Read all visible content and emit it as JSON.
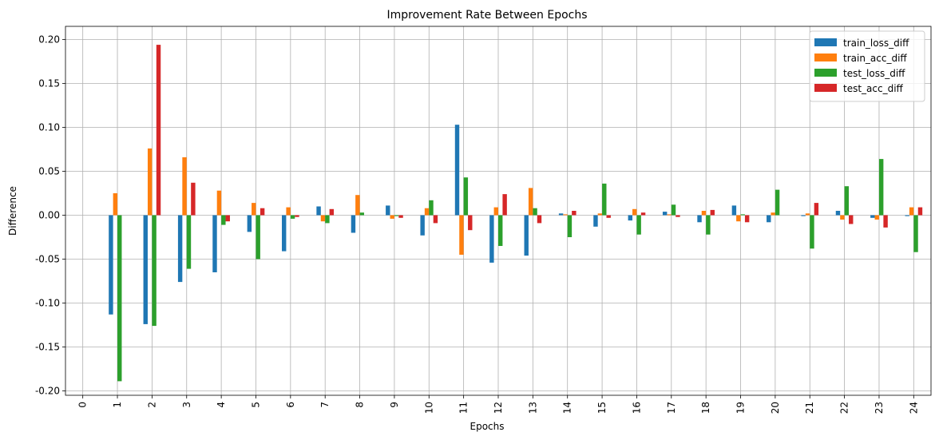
{
  "chart_data": {
    "type": "bar",
    "title": "Improvement Rate Between Epochs",
    "xlabel": "Epochs",
    "ylabel": "Difference",
    "categories": [
      "0",
      "1",
      "2",
      "3",
      "4",
      "5",
      "6",
      "7",
      "8",
      "9",
      "10",
      "11",
      "12",
      "13",
      "14",
      "15",
      "16",
      "17",
      "18",
      "19",
      "20",
      "21",
      "22",
      "23",
      "24"
    ],
    "ylim": [
      -0.205,
      0.215
    ],
    "yticks": [
      "-0.20",
      "-0.15",
      "-0.10",
      "-0.05",
      "0.00",
      "0.05",
      "0.10",
      "0.15",
      "0.20"
    ],
    "grid": true,
    "legend_position": "top-right",
    "series": [
      {
        "name": "train_loss_diff",
        "color": "#1f77b4",
        "values": [
          0,
          -0.113,
          -0.124,
          -0.076,
          -0.065,
          -0.019,
          -0.041,
          0.01,
          -0.02,
          0.011,
          -0.023,
          0.103,
          -0.054,
          -0.046,
          0.002,
          -0.013,
          -0.006,
          0.004,
          -0.008,
          0.011,
          -0.008,
          -0.001,
          0.005,
          -0.003,
          -0.001
        ]
      },
      {
        "name": "train_acc_diff",
        "color": "#ff7f0e",
        "values": [
          0,
          0.025,
          0.076,
          0.066,
          0.028,
          0.014,
          0.009,
          -0.007,
          0.023,
          -0.004,
          0.008,
          -0.045,
          0.009,
          0.031,
          0.001,
          0.002,
          0.007,
          0.001,
          0.005,
          -0.007,
          0.003,
          0.002,
          -0.005,
          -0.005,
          0.009
        ]
      },
      {
        "name": "test_loss_diff",
        "color": "#2ca02c",
        "values": [
          0,
          -0.189,
          -0.126,
          -0.061,
          -0.011,
          -0.05,
          -0.004,
          -0.009,
          0.003,
          -0.001,
          0.017,
          0.043,
          -0.035,
          0.008,
          -0.025,
          0.036,
          -0.022,
          0.012,
          -0.022,
          0.001,
          0.029,
          -0.038,
          0.033,
          0.064,
          -0.042
        ]
      },
      {
        "name": "test_acc_diff",
        "color": "#d62728",
        "values": [
          0,
          0,
          0.194,
          0.037,
          -0.007,
          0.008,
          -0.002,
          0.007,
          0,
          -0.003,
          -0.009,
          -0.017,
          0.024,
          -0.009,
          0.005,
          -0.003,
          0.003,
          -0.002,
          0.006,
          -0.008,
          0,
          0.014,
          -0.01,
          -0.014,
          0.009
        ]
      }
    ]
  }
}
